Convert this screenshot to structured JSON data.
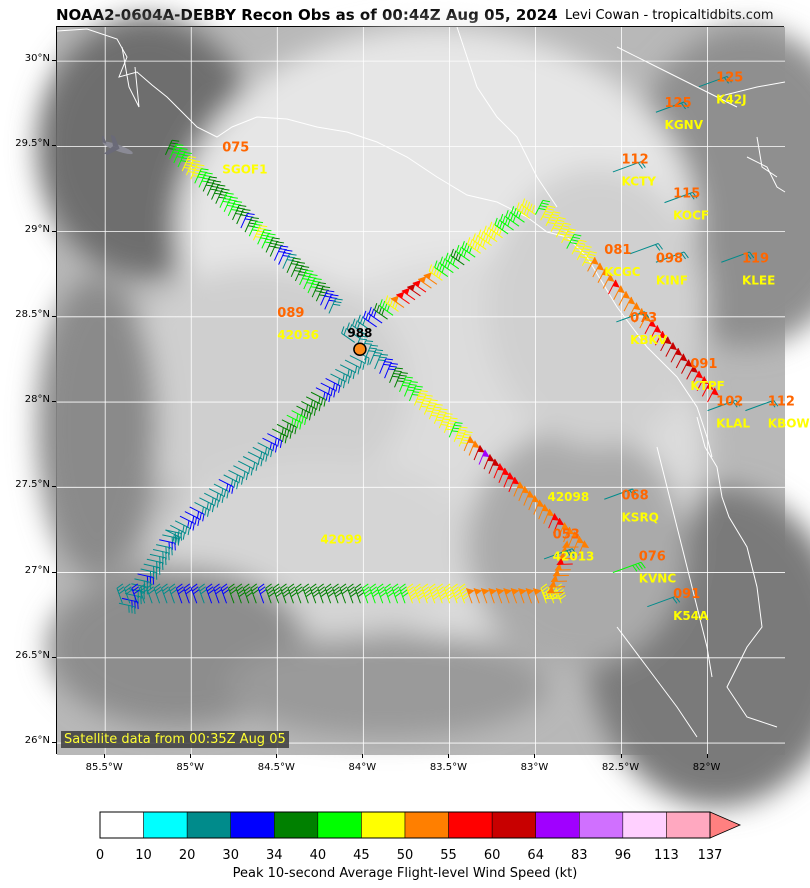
{
  "title": "NOAA2-0604A-DEBBY Recon Obs as of 00:44Z Aug 05, 2024",
  "credit": "Levi Cowan - tropicaltidbits.com",
  "satellite_note": "Satellite data from 00:35Z Aug 05",
  "colorbar": {
    "label": "Peak 10-second Average Flight-level Wind Speed (kt)",
    "ticks": [
      "0",
      "10",
      "20",
      "30",
      "34",
      "40",
      "45",
      "50",
      "55",
      "60",
      "64",
      "83",
      "96",
      "113",
      "137"
    ],
    "colors": [
      "#ffffff",
      "#00ffff",
      "#008b8b",
      "#0000ff",
      "#008000",
      "#00ff00",
      "#ffff00",
      "#ff7f00",
      "#ff0000",
      "#c80000",
      "#a000ff",
      "#d070ff",
      "#ffd0ff",
      "#ffa8c0"
    ],
    "extend_color": "#ff8080"
  },
  "axes": {
    "lat_labels": [
      "30°N",
      "29.5°N",
      "29°N",
      "28.5°N",
      "28°N",
      "27.5°N",
      "27°N",
      "26.5°N",
      "26°N"
    ],
    "lon_labels": [
      "85.5°W",
      "85°W",
      "84.5°W",
      "84°W",
      "83.5°W",
      "83°W",
      "82.5°W",
      "82°W"
    ]
  },
  "center": {
    "pressure_label": "988",
    "lat": 28.31,
    "lon": -84.02
  },
  "stations": [
    {
      "value": "075",
      "id": "SGOF1",
      "lat": 29.47,
      "lon": -84.82,
      "value_color": "#ff6600",
      "id_color": "#ffff00"
    },
    {
      "value": "125",
      "id": "KGNV",
      "lat": 29.73,
      "lon": -82.25,
      "value_color": "#ff6600",
      "id_color": "#ffff00"
    },
    {
      "value": "125",
      "id": "K42J",
      "lat": 29.88,
      "lon": -81.95,
      "value_color": "#ff6600",
      "id_color": "#ffff00"
    },
    {
      "value": "112",
      "id": "KCTY",
      "lat": 29.4,
      "lon": -82.5,
      "value_color": "#ff6600",
      "id_color": "#ffff00"
    },
    {
      "value": "115",
      "id": "KOCF",
      "lat": 29.2,
      "lon": -82.2,
      "value_color": "#ff6600",
      "id_color": "#ffff00"
    },
    {
      "value": "081",
      "id": "KCGC",
      "lat": 28.87,
      "lon": -82.6,
      "value_color": "#ff6600",
      "id_color": "#ffff00"
    },
    {
      "value": "098",
      "id": "KINF",
      "lat": 28.82,
      "lon": -82.3,
      "value_color": "#ff6600",
      "id_color": "#ffff00"
    },
    {
      "value": "119",
      "id": "KLEE",
      "lat": 28.82,
      "lon": -81.8,
      "value_color": "#ff6600",
      "id_color": "#ffff00"
    },
    {
      "value": "089",
      "id": "42036",
      "lat": 28.5,
      "lon": -84.5,
      "value_color": "#ff6600",
      "id_color": "#ffff00"
    },
    {
      "value": "073",
      "id": "KBKV",
      "lat": 28.47,
      "lon": -82.45,
      "value_color": "#ff6600",
      "id_color": "#ffff00"
    },
    {
      "value": "091",
      "id": "KTPF",
      "lat": 28.2,
      "lon": -82.1,
      "value_color": "#ff6600",
      "id_color": "#ffff00"
    },
    {
      "value": "102",
      "id": "KLAL",
      "lat": 27.98,
      "lon": -81.95,
      "value_color": "#ff6600",
      "id_color": "#ffff00"
    },
    {
      "value": "112",
      "id": "KBOW",
      "lat": 27.98,
      "lon": -81.65,
      "value_color": "#ff6600",
      "id_color": "#ffff00"
    },
    {
      "value": "",
      "id": "42098",
      "lat": 27.55,
      "lon": -82.93,
      "value_color": "#ff6600",
      "id_color": "#ffff00"
    },
    {
      "value": "068",
      "id": "KSRQ",
      "lat": 27.43,
      "lon": -82.5,
      "value_color": "#ff6600",
      "id_color": "#ffff00"
    },
    {
      "value": "",
      "id": "42099",
      "lat": 27.3,
      "lon": -84.25,
      "value_color": "#ff6600",
      "id_color": "#ffff00"
    },
    {
      "value": "053",
      "id": "42013",
      "lat": 27.2,
      "lon": -82.9,
      "value_color": "#ff6600",
      "id_color": "#ffff00"
    },
    {
      "value": "076",
      "id": "KVNC",
      "lat": 27.07,
      "lon": -82.4,
      "value_color": "#ff6600",
      "id_color": "#ffff00"
    },
    {
      "value": "091",
      "id": "K54A",
      "lat": 26.85,
      "lon": -82.2,
      "value_color": "#ff6600",
      "id_color": "#ffff00"
    }
  ],
  "legs": [
    {
      "name": "northwest-leg",
      "start": [
        29.45,
        -85.15
      ],
      "end": [
        28.52,
        -84.2
      ],
      "count": 40,
      "speeds": [
        38,
        40,
        42,
        44,
        46,
        47,
        45,
        43,
        41,
        38,
        36,
        35,
        38,
        42,
        44,
        40,
        36,
        34,
        33,
        38,
        42,
        45,
        44,
        40,
        36,
        34,
        32,
        30,
        28,
        34,
        36,
        38,
        41,
        43,
        40,
        38,
        36,
        32,
        30,
        28
      ]
    },
    {
      "name": "crossing-leg-ne",
      "start": [
        28.35,
        -84.05
      ],
      "end": [
        29.1,
        -83.0
      ],
      "count": 34,
      "speeds": [
        22,
        24,
        26,
        28,
        30,
        32,
        36,
        40,
        46,
        50,
        55,
        58,
        60,
        57,
        52,
        50,
        47,
        44,
        42,
        40,
        38,
        40,
        42,
        46,
        48,
        47,
        46,
        45,
        44,
        43,
        42,
        44,
        46,
        45
      ]
    },
    {
      "name": "coast-leg",
      "start": [
        29.1,
        -83.0
      ],
      "end": [
        28.0,
        -82.0
      ],
      "count": 34,
      "speeds": [
        44,
        45,
        46,
        47,
        46,
        45,
        44,
        45,
        46,
        48,
        50,
        52,
        53,
        54,
        55,
        53,
        52,
        51,
        50,
        52,
        54,
        56,
        57,
        58,
        60,
        61,
        62,
        63,
        61,
        60,
        58,
        57,
        56,
        55
      ]
    },
    {
      "name": "crossing-leg-se",
      "start": [
        28.3,
        -84.05
      ],
      "end": [
        27.1,
        -82.75
      ],
      "count": 46,
      "speeds": [
        22,
        24,
        26,
        28,
        29,
        30,
        32,
        36,
        38,
        40,
        42,
        44,
        45,
        46,
        47,
        47,
        46,
        46,
        45,
        44,
        46,
        48,
        50,
        52,
        60,
        66,
        62,
        60,
        58,
        57,
        56,
        55,
        54,
        53,
        52,
        51,
        50,
        52,
        54,
        55,
        56,
        54,
        52,
        50,
        52,
        51
      ]
    },
    {
      "name": "southwest-leg",
      "start": [
        28.3,
        -84.05
      ],
      "end": [
        27.25,
        -85.15
      ],
      "count": 40,
      "speeds": [
        22,
        23,
        24,
        25,
        26,
        28,
        30,
        32,
        33,
        34,
        35,
        36,
        38,
        40,
        41,
        38,
        36,
        34,
        33,
        30,
        28,
        26,
        24,
        23,
        22,
        24,
        26,
        28,
        30,
        29,
        28,
        27,
        26,
        28,
        30,
        31,
        30,
        29,
        28,
        27
      ]
    },
    {
      "name": "west-leg",
      "start": [
        27.25,
        -85.15
      ],
      "end": [
        26.82,
        -85.42
      ],
      "count": 16,
      "speeds": [
        28,
        29,
        30,
        29,
        28,
        27,
        26,
        28,
        29,
        30,
        29,
        28,
        28,
        29,
        30,
        29
      ]
    },
    {
      "name": "south-leg",
      "start": [
        26.82,
        -85.4
      ],
      "end": [
        26.82,
        -82.85
      ],
      "count": 60,
      "speeds": [
        28,
        29,
        30,
        29,
        28,
        27,
        28,
        29,
        30,
        31,
        30,
        29,
        30,
        31,
        33,
        34,
        35,
        36,
        34,
        33,
        35,
        36,
        38,
        36,
        34,
        35,
        36,
        37,
        36,
        35,
        34,
        36,
        38,
        40,
        41,
        42,
        43,
        42,
        44,
        45,
        46,
        47,
        46,
        45,
        46,
        47,
        48,
        50,
        51,
        52,
        53,
        52,
        51,
        50,
        51,
        52,
        50,
        49,
        48,
        47
      ]
    },
    {
      "name": "southeast-leg",
      "start": [
        26.85,
        -82.85
      ],
      "end": [
        27.15,
        -82.75
      ],
      "count": 10,
      "speeds": [
        48,
        50,
        51,
        52,
        53,
        54,
        55,
        53,
        52,
        51
      ]
    }
  ],
  "station_barbs": [
    {
      "lat": 29.85,
      "lon": -82.05,
      "speed": 20
    },
    {
      "lat": 29.7,
      "lon": -82.3,
      "speed": 20
    },
    {
      "lat": 29.35,
      "lon": -82.55,
      "speed": 20
    },
    {
      "lat": 29.17,
      "lon": -82.25,
      "speed": 20
    },
    {
      "lat": 28.87,
      "lon": -82.45,
      "speed": 20
    },
    {
      "lat": 28.82,
      "lon": -82.3,
      "speed": 20
    },
    {
      "lat": 28.82,
      "lon": -81.92,
      "speed": 20
    },
    {
      "lat": 28.47,
      "lon": -82.53,
      "speed": 20
    },
    {
      "lat": 27.95,
      "lon": -82.0,
      "speed": 21
    },
    {
      "lat": 27.95,
      "lon": -81.78,
      "speed": 20
    },
    {
      "lat": 27.43,
      "lon": -82.6,
      "speed": 21
    },
    {
      "lat": 27.0,
      "lon": -82.55,
      "speed": 42
    },
    {
      "lat": 26.8,
      "lon": -82.35,
      "speed": 21
    },
    {
      "lat": 27.08,
      "lon": -82.95,
      "speed": 28
    }
  ],
  "aircraft_icon": "airplane-icon"
}
